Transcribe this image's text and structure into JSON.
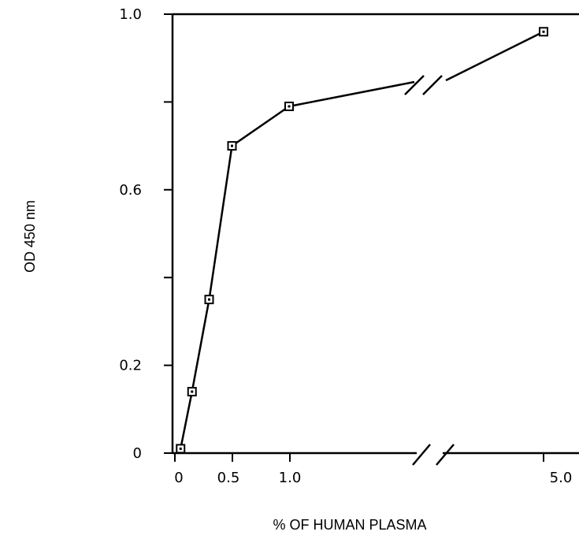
{
  "chart_data": {
    "type": "line",
    "title": "",
    "xlabel": "% OF HUMAN PLASMA",
    "ylabel": "OD 450 nm",
    "ylim": [
      0,
      1.0
    ],
    "x_axis_break": [
      1.0,
      5.0
    ],
    "y_tick_labels": [
      "0",
      "0.2",
      "0.6",
      "1.0"
    ],
    "x_tick_labels": [
      "0",
      "0.5",
      "1.0",
      "5.0"
    ],
    "series": [
      {
        "x": [
          0.05,
          0.15,
          0.3,
          0.5,
          1.0,
          5.0
        ],
        "y": [
          0.01,
          0.14,
          0.35,
          0.7,
          0.79,
          0.96
        ]
      }
    ],
    "grid": false,
    "legend": "none"
  }
}
